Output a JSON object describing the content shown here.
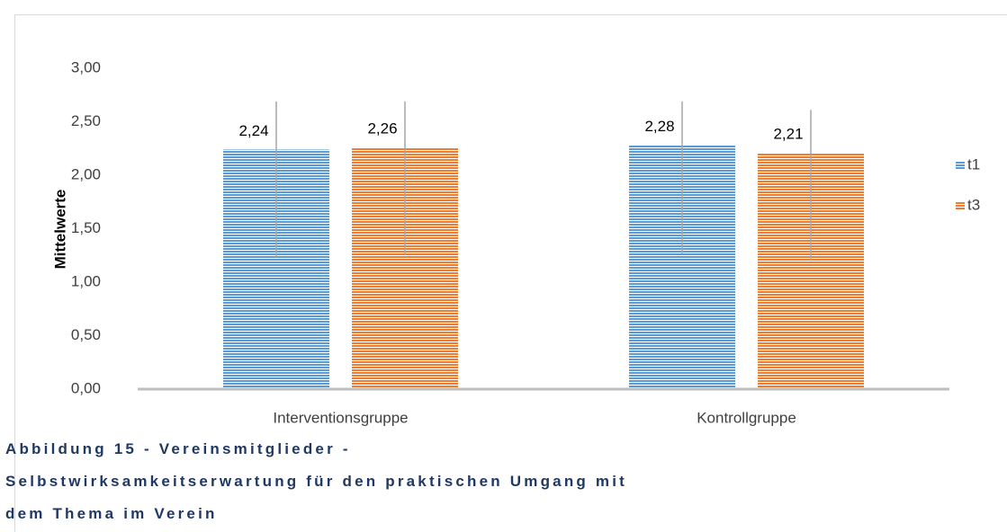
{
  "chart_data": {
    "type": "bar",
    "caption": "Abbildung 15 - Vereinsmitglieder - Selbstwirksamkeitserwartung für den praktischen Umgang mit dem Thema im Verein",
    "ylabel": "Mittelwerte",
    "categories": [
      "Interventionsgruppe",
      "Kontrollgruppe"
    ],
    "series": [
      {
        "name": "t1",
        "color": "#5b9bd5",
        "values": [
          2.24,
          2.28
        ],
        "value_labels": [
          "2,24",
          "2,28"
        ],
        "error_low": [
          1.23,
          1.27
        ],
        "error_high": [
          2.69,
          2.69
        ]
      },
      {
        "name": "t3",
        "color": "#ed7d31",
        "values": [
          2.26,
          2.21
        ],
        "value_labels": [
          "2,26",
          "2,21"
        ],
        "error_low": [
          1.26,
          1.2
        ],
        "error_high": [
          2.69,
          2.61
        ]
      }
    ],
    "ylim": [
      0,
      3
    ],
    "yticks": [
      {
        "value": 0,
        "label": "0,00"
      },
      {
        "value": 0.5,
        "label": "0,50"
      },
      {
        "value": 1,
        "label": "1,00"
      },
      {
        "value": 1.5,
        "label": "1,50"
      },
      {
        "value": 2,
        "label": "2,00"
      },
      {
        "value": 2.5,
        "label": "2,50"
      },
      {
        "value": 3,
        "label": "3,00"
      }
    ],
    "legend": "right"
  }
}
